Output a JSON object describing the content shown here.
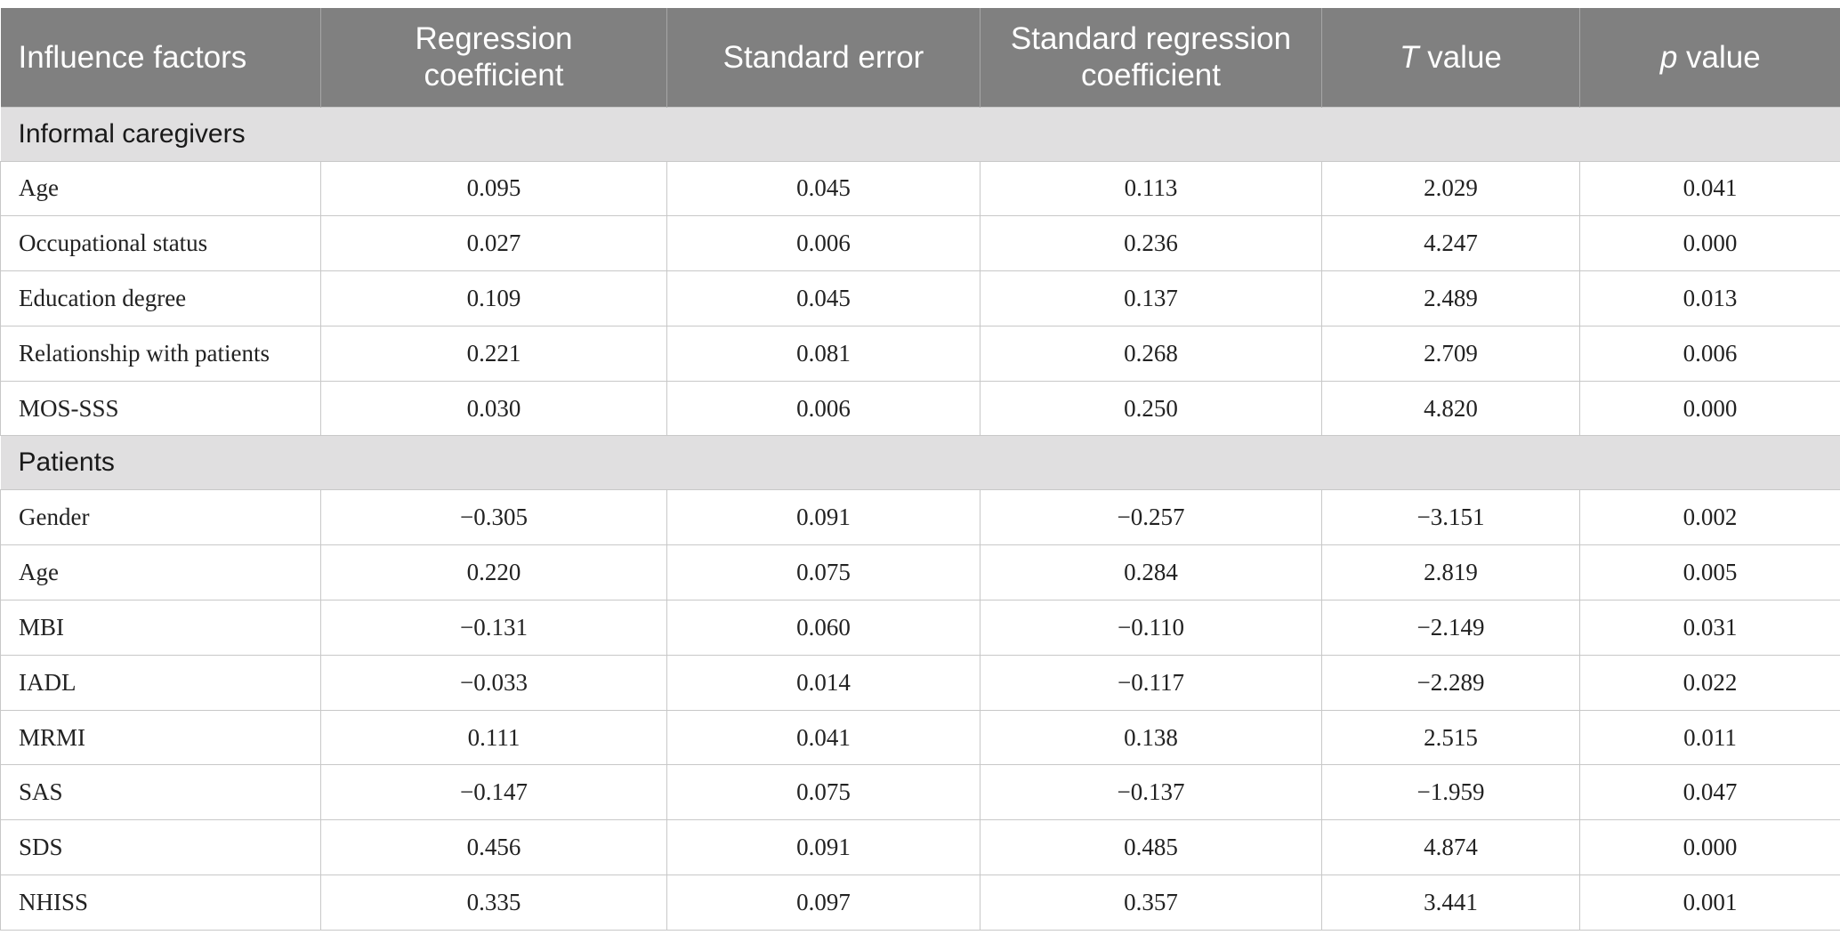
{
  "table": {
    "headers": [
      {
        "lines": [
          "Influence factors"
        ]
      },
      {
        "lines": [
          "Regression",
          "coefficient"
        ]
      },
      {
        "lines": [
          "Standard error"
        ]
      },
      {
        "lines": [
          "Standard regression",
          "coefficient"
        ]
      },
      {
        "italic": "T",
        "text": " value"
      },
      {
        "italic": "p",
        "text": " value"
      }
    ],
    "sections": [
      {
        "title": "Informal caregivers",
        "rows": [
          [
            "Age",
            "0.095",
            "0.045",
            "0.113",
            "2.029",
            "0.041"
          ],
          [
            "Occupational status",
            "0.027",
            "0.006",
            "0.236",
            "4.247",
            "0.000"
          ],
          [
            "Education degree",
            "0.109",
            "0.045",
            "0.137",
            "2.489",
            "0.013"
          ],
          [
            "Relationship with patients",
            "0.221",
            "0.081",
            "0.268",
            "2.709",
            "0.006"
          ],
          [
            "MOS-SSS",
            "0.030",
            "0.006",
            "0.250",
            "4.820",
            "0.000"
          ]
        ]
      },
      {
        "title": "Patients",
        "rows": [
          [
            "Gender",
            "−0.305",
            "0.091",
            "−0.257",
            "−3.151",
            "0.002"
          ],
          [
            "Age",
            "0.220",
            "0.075",
            "0.284",
            "2.819",
            "0.005"
          ],
          [
            "MBI",
            "−0.131",
            "0.060",
            "−0.110",
            "−2.149",
            "0.031"
          ],
          [
            "IADL",
            "−0.033",
            "0.014",
            "−0.117",
            "−2.289",
            "0.022"
          ],
          [
            "MRMI",
            "0.111",
            "0.041",
            "0.138",
            "2.515",
            "0.011"
          ],
          [
            "SAS",
            "−0.147",
            "0.075",
            "−0.137",
            "−1.959",
            "0.047"
          ],
          [
            "SDS",
            "0.456",
            "0.091",
            "0.485",
            "4.874",
            "0.000"
          ],
          [
            "NHISS",
            "0.335",
            "0.097",
            "0.357",
            "3.441",
            "0.001"
          ]
        ]
      }
    ]
  }
}
